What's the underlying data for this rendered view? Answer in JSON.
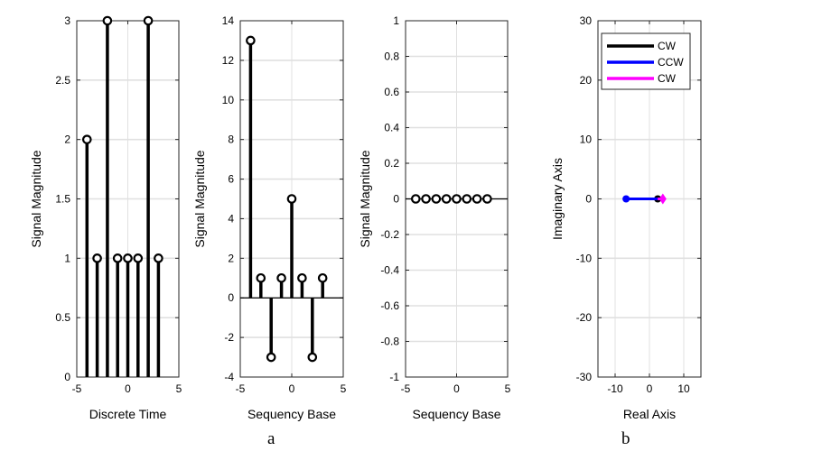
{
  "figure": {
    "panel_labels": [
      "a",
      "b"
    ]
  },
  "chart_data": [
    {
      "type": "stem",
      "xlabel": "Discrete Time",
      "ylabel": "Signal Magnitude",
      "xlim": [
        -5,
        5
      ],
      "ylim": [
        0,
        3
      ],
      "xticks": [
        -5,
        0,
        5
      ],
      "yticks": [
        0,
        0.5,
        1,
        1.5,
        2,
        2.5,
        3
      ],
      "grid": true,
      "x": [
        -4,
        -3,
        -2,
        -1,
        0,
        1,
        2,
        3
      ],
      "values": [
        2,
        1,
        3,
        1,
        1,
        1,
        3,
        1
      ]
    },
    {
      "type": "stem",
      "xlabel": "Sequency Base",
      "ylabel": "Signal Magnitude",
      "xlim": [
        -5,
        5
      ],
      "ylim": [
        -4,
        14
      ],
      "xticks": [
        -5,
        0,
        5
      ],
      "yticks": [
        -4,
        -2,
        0,
        2,
        4,
        6,
        8,
        10,
        12,
        14
      ],
      "grid": true,
      "x": [
        -4,
        -3,
        -2,
        -1,
        0,
        1,
        2,
        3
      ],
      "values": [
        13,
        1,
        -3,
        1,
        5,
        1,
        -3,
        1
      ]
    },
    {
      "type": "stem",
      "xlabel": "Sequency Base",
      "ylabel": "Signal Magnitude",
      "xlim": [
        -5,
        5
      ],
      "ylim": [
        -1,
        1
      ],
      "xticks": [
        -5,
        0,
        5
      ],
      "yticks": [
        -1,
        -0.8,
        -0.6,
        -0.4,
        -0.2,
        0,
        0.2,
        0.4,
        0.6,
        0.8,
        1
      ],
      "grid": true,
      "x": [
        -4,
        -3,
        -2,
        -1,
        0,
        1,
        2,
        3
      ],
      "values": [
        0,
        0,
        0,
        0,
        0,
        0,
        0,
        0
      ]
    },
    {
      "type": "line",
      "xlabel": "Real Axis",
      "ylabel": "Imaginary Axis",
      "xlim": [
        -15,
        15
      ],
      "ylim": [
        -30,
        30
      ],
      "xticks": [
        -10,
        0,
        10
      ],
      "yticks": [
        -30,
        -20,
        -10,
        0,
        10,
        20,
        30
      ],
      "grid": true,
      "legend_position": "top-left",
      "series": [
        {
          "name": "CW",
          "color": "#000000",
          "x": [
            2.4,
            2.4
          ],
          "y": [
            0,
            0
          ],
          "marker": "dot"
        },
        {
          "name": "CCW",
          "color": "#0000ff",
          "x": [
            -6.8,
            2.4
          ],
          "y": [
            0,
            0
          ],
          "marker": "dot-start"
        },
        {
          "name": "CW",
          "color": "#ff00ff",
          "x": [
            2.4,
            3.9
          ],
          "y": [
            0,
            0
          ],
          "marker": "diamond-end"
        }
      ]
    }
  ]
}
